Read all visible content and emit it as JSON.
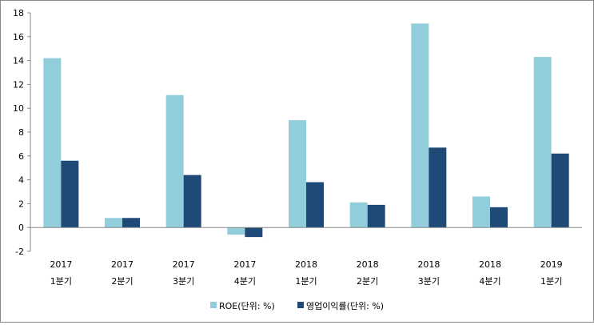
{
  "chart_data": {
    "type": "bar",
    "title": "",
    "xlabel": "",
    "ylabel": "",
    "ylim": [
      -2,
      18
    ],
    "yticks": [
      "-2",
      "0",
      "2",
      "4",
      "6",
      "8",
      "10",
      "12",
      "14",
      "16",
      "18"
    ],
    "categories": [
      [
        "2017",
        "1분기"
      ],
      [
        "2017",
        "2분기"
      ],
      [
        "2017",
        "3분기"
      ],
      [
        "2017",
        "4분기"
      ],
      [
        "2018",
        "1분기"
      ],
      [
        "2018",
        "2분기"
      ],
      [
        "2018",
        "3분기"
      ],
      [
        "2018",
        "4분기"
      ],
      [
        "2019",
        "1분기"
      ]
    ],
    "series": [
      {
        "name": "ROE(단위: %)",
        "color": "#92CDDC",
        "values": [
          14.2,
          0.8,
          11.1,
          -0.6,
          9.0,
          2.1,
          17.1,
          2.6,
          14.3
        ]
      },
      {
        "name": "영업이익률(단위: %)",
        "color": "#1F4A78",
        "values": [
          5.6,
          0.8,
          4.4,
          -0.8,
          3.8,
          1.9,
          6.7,
          1.7,
          6.2
        ]
      }
    ],
    "legend": "bottom",
    "grid": false
  }
}
